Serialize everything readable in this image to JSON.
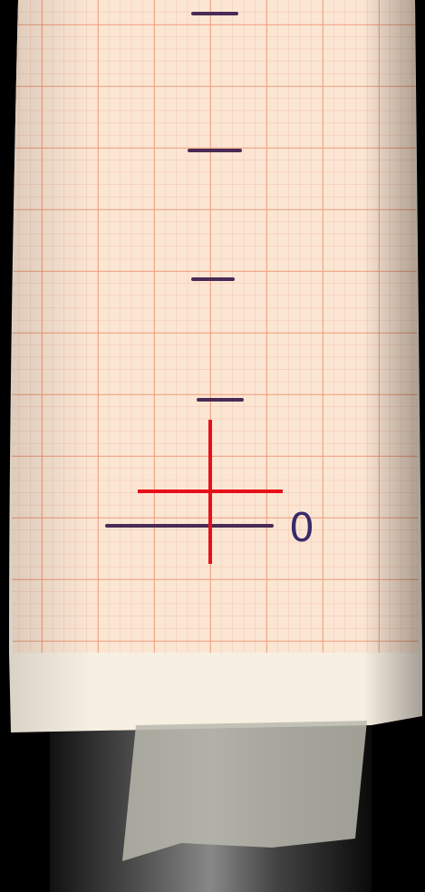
{
  "labels": {
    "zero": "0"
  }
}
